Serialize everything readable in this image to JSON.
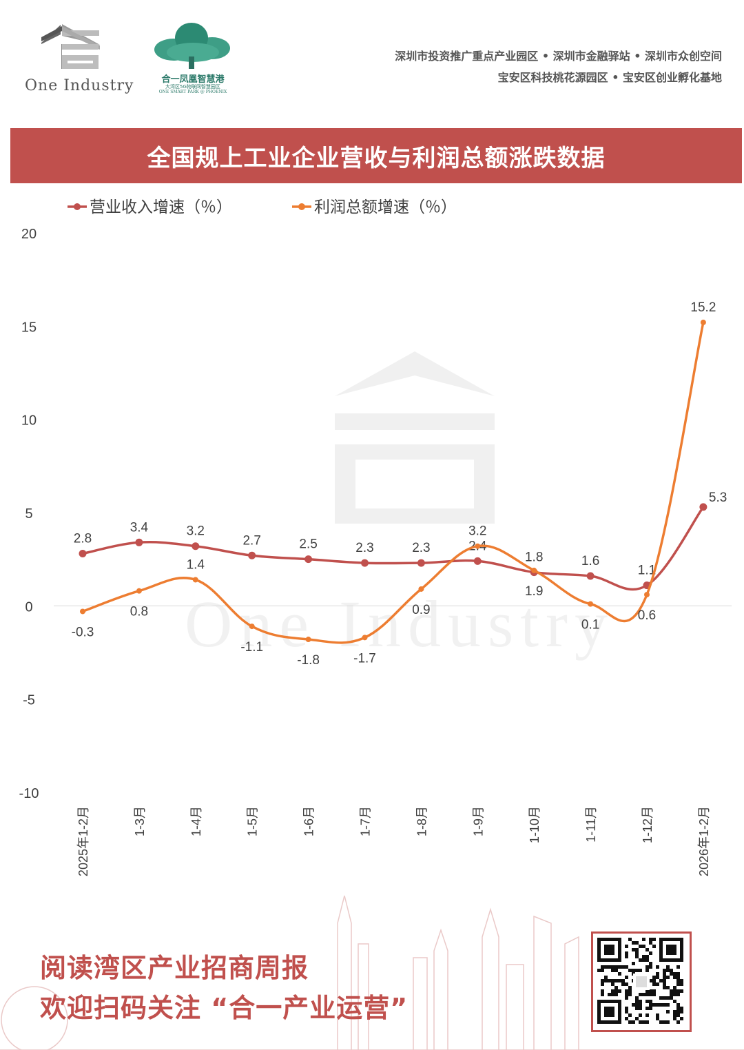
{
  "logos": {
    "one_industry": "One Industry",
    "phoenix_cn": "合一凤凰智慧港",
    "phoenix_sub_cn": "大湾区5G物联网智慧园区",
    "phoenix_sub_en": "ONE SMART PARK @ PHOENIX"
  },
  "header": {
    "line1": "深圳市投资推广重点产业园区 • 深圳市金融驿站 • 深圳市众创空间",
    "line2": "宝安区科技桃花源园区 • 宝安区创业孵化基地"
  },
  "banner": {
    "title": "全国规上工业企业营收与利润总额涨跌数据"
  },
  "chart_data": {
    "type": "line",
    "categories": [
      "2025年1-2月",
      "1-3月",
      "1-4月",
      "1-5月",
      "1-6月",
      "1-7月",
      "1-8月",
      "1-9月",
      "1-10月",
      "1-11月",
      "1-12月",
      "2026年1-2月"
    ],
    "series": [
      {
        "name": "营业收入增速（％）",
        "color": "#c0504d",
        "values": [
          2.8,
          3.4,
          3.2,
          2.7,
          2.5,
          2.3,
          2.3,
          2.4,
          1.8,
          1.6,
          1.1,
          5.3
        ]
      },
      {
        "name": "利润总额增速（％）",
        "color": "#ed7d31",
        "values": [
          -0.3,
          0.8,
          1.4,
          -1.1,
          -1.8,
          -1.7,
          0.9,
          3.2,
          1.9,
          0.1,
          0.6,
          15.2
        ]
      }
    ],
    "ylim": [
      -10,
      20
    ],
    "yticks": [
      20,
      15,
      10,
      5,
      0,
      -5,
      -10
    ],
    "legend_position": "top-left",
    "grid": false
  },
  "watermark": "One Industry",
  "footer": {
    "line1": "阅读湾区产业招商周报",
    "line2": "欢迎扫码关注 “合一产业运营”"
  }
}
